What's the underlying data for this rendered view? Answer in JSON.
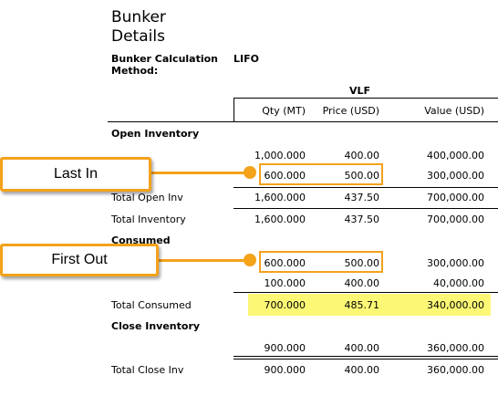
{
  "title_line1": "Bunker",
  "title_line2": "Details",
  "method": {
    "label_line1": "Bunker Calculation",
    "label_line2": "Method:",
    "value": "LIFO"
  },
  "grade": "VLF",
  "columns": {
    "qty": "Qty (MT)",
    "price": "Price (USD)",
    "value": "Value (USD)"
  },
  "open_inventory": {
    "heading": "Open Inventory",
    "rows": [
      {
        "qty": "1,000.000",
        "price": "400.00",
        "value": "400,000.00"
      },
      {
        "qty": "600.000",
        "price": "500.00",
        "value": "300,000.00"
      }
    ],
    "total": {
      "label": "Total Open Inv",
      "qty": "1,600.000",
      "price": "437.50",
      "value": "700,000.00"
    }
  },
  "total_inventory": {
    "label": "Total Inventory",
    "qty": "1,600.000",
    "price": "437.50",
    "value": "700,000.00"
  },
  "consumed": {
    "heading": "Consumed",
    "rows": [
      {
        "qty": "600.000",
        "price": "500.00",
        "value": "300,000.00"
      },
      {
        "qty": "100.000",
        "price": "400.00",
        "value": "40,000.00"
      }
    ],
    "total": {
      "label": "Total Consumed",
      "qty": "700.000",
      "price": "485.71",
      "value": "340,000.00"
    }
  },
  "close_inventory": {
    "heading": "Close Inventory",
    "rows": [
      {
        "qty": "900.000",
        "price": "400.00",
        "value": "360,000.00"
      }
    ],
    "total": {
      "label": "Total Close Inv",
      "qty": "900.000",
      "price": "400.00",
      "value": "360,000.00"
    }
  },
  "callouts": {
    "last_in": "Last In",
    "first_out": "First Out"
  },
  "colors": {
    "callout_orange": "#f3a21a",
    "highlight_yellow": "#fcf876"
  }
}
